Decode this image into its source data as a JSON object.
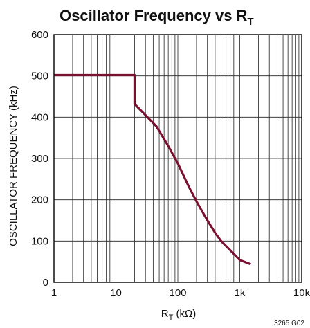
{
  "chart_data": {
    "type": "line",
    "title": "Oscillator Frequency vs R",
    "title_subscript": "T",
    "xlabel": "R",
    "xlabel_subscript": "T",
    "xlabel_suffix": " (kΩ)",
    "ylabel": "OSCILLATOR FREQUENCY (kHz)",
    "x_scale": "log",
    "xlim": [
      1,
      10000
    ],
    "ylim": [
      0,
      600
    ],
    "x_ticks": [
      {
        "value": 1,
        "label": "1"
      },
      {
        "value": 10,
        "label": "10"
      },
      {
        "value": 100,
        "label": "100"
      },
      {
        "value": 1000,
        "label": "1k"
      },
      {
        "value": 10000,
        "label": "10k"
      }
    ],
    "y_ticks": [
      {
        "value": 0,
        "label": "0"
      },
      {
        "value": 100,
        "label": "100"
      },
      {
        "value": 200,
        "label": "200"
      },
      {
        "value": 300,
        "label": "300"
      },
      {
        "value": 400,
        "label": "400"
      },
      {
        "value": 500,
        "label": "500"
      },
      {
        "value": 600,
        "label": "600"
      }
    ],
    "grid": true,
    "line_color": "#7a1030",
    "series": [
      {
        "x": [
          1,
          20,
          20,
          30,
          45,
          70,
          100,
          150,
          200,
          300,
          400,
          500,
          700,
          1000,
          1500
        ],
        "y": [
          502,
          502,
          432,
          405,
          378,
          330,
          288,
          232,
          196,
          150,
          120,
          100,
          78,
          54,
          44
        ]
      }
    ],
    "figure_code": "3265 G02"
  }
}
